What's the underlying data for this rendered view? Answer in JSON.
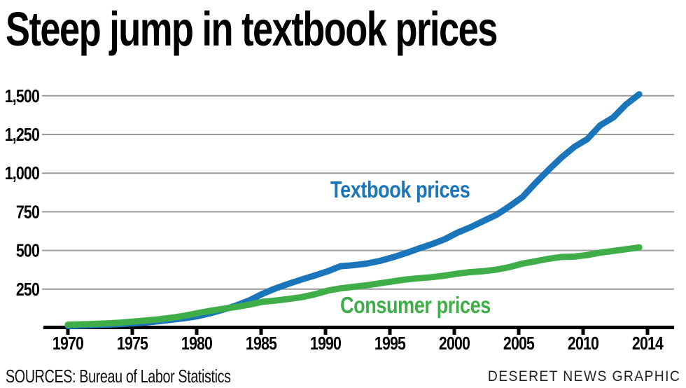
{
  "header": {
    "title": "Steep jump in textbook prices"
  },
  "footer": {
    "sources": "SOURCES: Bureau of Labor Statistics",
    "credit": "DESERET NEWS GRAPHIC"
  },
  "colors": {
    "textbook_blue": "#1b75bb",
    "consumer_green": "#3fae49",
    "grid_gray": "#9b9b9b",
    "axis_black": "#000000"
  },
  "chart_data": {
    "type": "line",
    "title": "Steep jump in textbook prices",
    "xlabel": "",
    "ylabel": "",
    "grid": "horizontal",
    "legend_position": "inline-annotations",
    "xlim": [
      1970,
      2014
    ],
    "ylim": [
      0,
      1560
    ],
    "x_ticks": [
      "1970",
      "1975",
      "1980",
      "1985",
      "1990",
      "1995",
      "2000",
      "2005",
      "2010",
      "2014"
    ],
    "y_ticks": [
      {
        "value": 250,
        "label": "250"
      },
      {
        "value": 500,
        "label": "500"
      },
      {
        "value": 750,
        "label": "750"
      },
      {
        "value": 1000,
        "label": "1,000"
      },
      {
        "value": 1250,
        "label": "1,250"
      },
      {
        "value": 1500,
        "label": "1,500"
      }
    ],
    "series": [
      {
        "name": "Textbook prices",
        "color": "#1b75bb",
        "points": [
          [
            1970,
            12
          ],
          [
            1971,
            14
          ],
          [
            1972,
            17
          ],
          [
            1973,
            20
          ],
          [
            1974,
            24
          ],
          [
            1975,
            28
          ],
          [
            1976,
            34
          ],
          [
            1977,
            42
          ],
          [
            1978,
            52
          ],
          [
            1979,
            62
          ],
          [
            1980,
            75
          ],
          [
            1981,
            95
          ],
          [
            1982,
            118
          ],
          [
            1983,
            145
          ],
          [
            1984,
            178
          ],
          [
            1985,
            220
          ],
          [
            1986,
            255
          ],
          [
            1987,
            285
          ],
          [
            1988,
            312
          ],
          [
            1989,
            338
          ],
          [
            1990,
            365
          ],
          [
            1991,
            398
          ],
          [
            1992,
            405
          ],
          [
            1993,
            415
          ],
          [
            1994,
            432
          ],
          [
            1995,
            455
          ],
          [
            1996,
            482
          ],
          [
            1997,
            512
          ],
          [
            1998,
            540
          ],
          [
            1999,
            572
          ],
          [
            2000,
            615
          ],
          [
            2001,
            650
          ],
          [
            2002,
            690
          ],
          [
            2003,
            730
          ],
          [
            2004,
            785
          ],
          [
            2005,
            845
          ],
          [
            2006,
            935
          ],
          [
            2007,
            1020
          ],
          [
            2008,
            1100
          ],
          [
            2009,
            1170
          ],
          [
            2010,
            1220
          ],
          [
            2011,
            1310
          ],
          [
            2012,
            1360
          ],
          [
            2013,
            1445
          ],
          [
            2014,
            1510
          ]
        ]
      },
      {
        "name": "Consumer prices",
        "color": "#3fae49",
        "points": [
          [
            1970,
            20
          ],
          [
            1971,
            22
          ],
          [
            1972,
            25
          ],
          [
            1973,
            28
          ],
          [
            1974,
            33
          ],
          [
            1975,
            40
          ],
          [
            1976,
            47
          ],
          [
            1977,
            55
          ],
          [
            1978,
            65
          ],
          [
            1979,
            78
          ],
          [
            1980,
            95
          ],
          [
            1981,
            110
          ],
          [
            1982,
            123
          ],
          [
            1983,
            135
          ],
          [
            1984,
            150
          ],
          [
            1985,
            168
          ],
          [
            1986,
            176
          ],
          [
            1987,
            186
          ],
          [
            1988,
            198
          ],
          [
            1989,
            216
          ],
          [
            1990,
            240
          ],
          [
            1991,
            255
          ],
          [
            1992,
            265
          ],
          [
            1993,
            275
          ],
          [
            1994,
            287
          ],
          [
            1995,
            300
          ],
          [
            1996,
            312
          ],
          [
            1997,
            320
          ],
          [
            1998,
            327
          ],
          [
            1999,
            337
          ],
          [
            2000,
            350
          ],
          [
            2001,
            360
          ],
          [
            2002,
            366
          ],
          [
            2003,
            376
          ],
          [
            2004,
            392
          ],
          [
            2005,
            415
          ],
          [
            2006,
            430
          ],
          [
            2007,
            446
          ],
          [
            2008,
            458
          ],
          [
            2009,
            460
          ],
          [
            2010,
            470
          ],
          [
            2011,
            486
          ],
          [
            2012,
            497
          ],
          [
            2013,
            508
          ],
          [
            2014,
            520
          ]
        ]
      }
    ]
  }
}
